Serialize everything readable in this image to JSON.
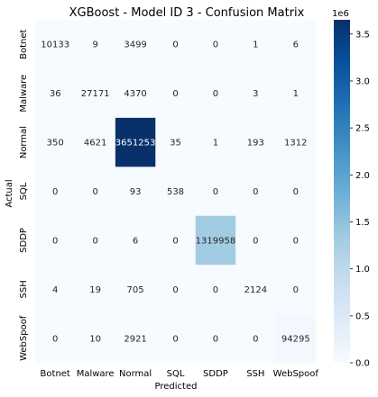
{
  "chart_data": {
    "type": "heatmap",
    "title": "XGBoost - Model ID 3 - Confusion Matrix",
    "xlabel": "Predicted",
    "ylabel": "Actual",
    "x_categories": [
      "Botnet",
      "Malware",
      "Normal",
      "SQL",
      "SDDP",
      "SSH",
      "WebSpoof"
    ],
    "y_categories": [
      "Botnet",
      "Malware",
      "Normal",
      "SQL",
      "SDDP",
      "SSH",
      "WebSpoof"
    ],
    "values": [
      [
        10133,
        9,
        3499,
        0,
        0,
        1,
        6
      ],
      [
        36,
        27171,
        4370,
        0,
        0,
        3,
        1
      ],
      [
        350,
        4621,
        3651253,
        35,
        1,
        193,
        1312
      ],
      [
        0,
        0,
        93,
        538,
        0,
        0,
        0
      ],
      [
        0,
        0,
        6,
        0,
        1319958,
        0,
        0
      ],
      [
        4,
        19,
        705,
        0,
        0,
        2124,
        0
      ],
      [
        0,
        10,
        2921,
        0,
        0,
        0,
        94295
      ]
    ],
    "colormap": "Blues",
    "colorbar": {
      "range": [
        0,
        3651253
      ],
      "ticks": [
        0.0,
        0.5,
        1.0,
        1.5,
        2.0,
        2.5,
        3.0,
        3.5
      ],
      "tick_labels": [
        "0.0",
        "0.5",
        "1.0",
        "1.5",
        "2.0",
        "2.5",
        "3.0",
        "3.5"
      ],
      "scale_label": "1e6"
    }
  }
}
